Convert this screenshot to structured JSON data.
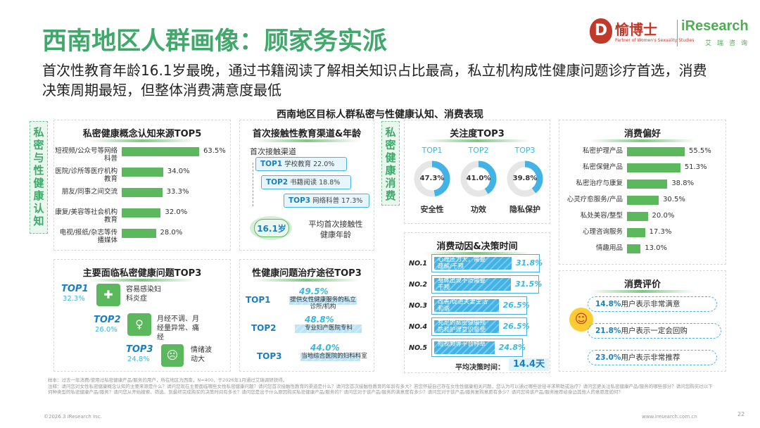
{
  "header": {
    "title": "西南地区人群画像：顾家务实派",
    "subtitle": "首次性教育年龄16.1岁最晚，通过书籍阅读了解相关知识占比最高，私立机构成性健康问题诊疗首选，消费决策周期最短，但整体消费满意度最低",
    "logo_yubo": "愉博士",
    "logo_yubo_sub": "Partner of Women's Sexuality Studies",
    "logo_iresearch": "iResearch",
    "logo_iresearch_sub": "艾瑞咨询",
    "brand_red": "#c0392b",
    "brand_green": "#4caf50"
  },
  "section_heading": "西南地区目标人群私密与性健康认知、消费表现",
  "tabs": {
    "cognition": "私密与性健康认知",
    "consumption": "私密健康消费"
  },
  "colors": {
    "accent_green": "#5cb85c",
    "accent_blue": "#43b3e5",
    "title_green": "#3fa86a"
  },
  "chart_data": [
    {
      "type": "bar",
      "title": "私密健康概念认知来源TOP5",
      "categories": [
        "短视频/公众号等网络科普",
        "医院/诊所等医疗机构教育",
        "朋友/同事之间交流",
        "康复/美容等社会机构教育",
        "电视/报纸/杂志等传播媒体"
      ],
      "values": [
        63.5,
        34.0,
        33.3,
        32.0,
        28.0
      ],
      "value_labels": [
        "63.5%",
        "34.0%",
        "33.3%",
        "32.0%",
        "28.0%"
      ]
    },
    {
      "type": "bar",
      "title": "消费偏好",
      "categories": [
        "私密护理产品",
        "私密保健产品",
        "私密治疗与康复",
        "心灵疗愈服务/产品",
        "私处美容/整型",
        "心理咨询服务",
        "情趣用品"
      ],
      "values": [
        55.5,
        51.3,
        38.8,
        30.5,
        20.0,
        17.3,
        13.0
      ],
      "value_labels": [
        "55.5%",
        "51.3%",
        "38.8%",
        "30.5%",
        "20.0%",
        "17.3%",
        "13.0%"
      ]
    },
    {
      "type": "pie",
      "title": "关注度TOP3",
      "categories": [
        "安全性",
        "功效",
        "隐私保护"
      ],
      "ranks": [
        "TOP1",
        "TOP2",
        "TOP3"
      ],
      "values": [
        47.3,
        41.0,
        39.8
      ],
      "value_labels": [
        "47.3%",
        "41.0%",
        "39.8%"
      ]
    },
    {
      "type": "bar",
      "title": "消费动因&决策时间",
      "categories": [
        "NO.1",
        "NO.2",
        "NO.3",
        "NO.4",
        "NO.5"
      ],
      "labels": [
        "心理压力大，需要疏解/干预",
        "身体出现不适需要干预",
        "改善/促进夫妻生活和谐",
        "充足的私密健康预防和护理意识驱使",
        "短视频等平台种草"
      ],
      "values": [
        31.8,
        31.5,
        26.5,
        26.5,
        24.8
      ],
      "value_labels": [
        "31.8%",
        "31.5%",
        "26.5%",
        "26.5%",
        "24.8%"
      ]
    },
    {
      "type": "bar",
      "title": "性健康问题治疗途径TOP3",
      "categories": [
        "TOP1",
        "TOP2",
        "TOP3"
      ],
      "labels": [
        "提供女性健康服务的私立诊所/机构",
        "专业妇产医院专科",
        "当地综合医院的妇科科室"
      ],
      "values": [
        49.5,
        48.8,
        44.0
      ],
      "value_labels": [
        "49.5%",
        "48.8%",
        "44.0%"
      ]
    }
  ],
  "channel_card": {
    "title": "首次接触性教育渠道&年龄",
    "sub_label": "首次接触渠道",
    "items": [
      {
        "rank": "TOP1",
        "label": "学校教育",
        "value": "22.0%"
      },
      {
        "rank": "TOP2",
        "label": "书籍阅读",
        "value": "18.8%"
      },
      {
        "rank": "TOP3",
        "label": "网络科普",
        "value": "17.3%"
      }
    ],
    "age_value": "16.1岁",
    "age_label": "平均首次接触性健康年龄"
  },
  "problems_card": {
    "title": "主要面临私密健康问题TOP3",
    "items": [
      {
        "rank": "TOP1",
        "value": "32.3%",
        "label": "容易感染妇科炎症"
      },
      {
        "rank": "TOP2",
        "value": "26.0%",
        "label": "月经不调、月经量异常、痛经"
      },
      {
        "rank": "TOP3",
        "value": "24.8%",
        "label": "情绪波动大"
      }
    ]
  },
  "decision_time": {
    "label": "平均决策时间：",
    "value": "14.4天"
  },
  "evaluation_card": {
    "title": "消费评价",
    "items": [
      {
        "value": "14.8%",
        "label": "用户表示非常满意"
      },
      {
        "value": "21.8%",
        "label": "用户表示一定会回购"
      },
      {
        "value": "23.0%",
        "label": "用户表示非常推荐"
      }
    ]
  },
  "footer": {
    "sample": "样本：过去一年消费/使用过私密健康产品/服务的用户，所在地区为西南，N=400，于2026年1月通过艾瑞调研获得。",
    "note": "注释：请问您对女性私密健康概念认知的主要来源是什么？请问您现在主要面临哪些女性私密健康问题？请问您首次接触性教育的渠道是什么？请问您首次接触性教育的年龄有多大？若您怀疑自己存在女性性健康相关问题，您认为可以通过哪些途径寻求帮助或治疗？请问您更关注私密健康产品/服务的哪些部分？请问您购买过以下何种类型的私密健康产品/服务？请问您从开始搜索、筛选、到最终完成购买的决策时间有多长？请问您是出于什么原因购买私密健康产品/服务的？请问您对于该产品/服务的满意度有多少？请问您对于该产品/服务复购意愿有多少？请问您将该产品/服务推荐给身边其他人的意愿度如何？",
    "copyright": "©2026.3 iResearch Inc.",
    "site": "www.iresearch.com.cn",
    "page": "22"
  }
}
